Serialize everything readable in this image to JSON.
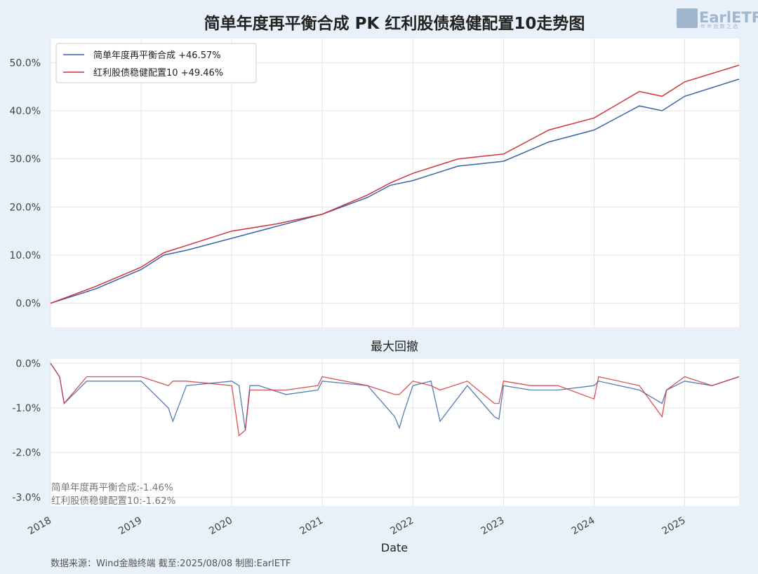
{
  "title": "简单年度再平衡合成 PK 红利股债稳健配置10走势图",
  "logo": {
    "text": "EarlETF",
    "subtext": "年 年 指 数 之 选"
  },
  "footer": "数据来源：Wind金融终端 截至:2025/08/08 制图:EarlETF",
  "colors": {
    "series1": "#3a64a8",
    "series2": "#d0343c",
    "grid": "#e4e4e4",
    "background": "#e8f1fa"
  },
  "chart_data": [
    {
      "type": "line",
      "title": "简单年度再平衡合成 PK 红利股债稳健配置10走势图",
      "xlabel": "",
      "ylabel": "",
      "ylim": [
        -5,
        55
      ],
      "yticks": [
        "0.0%",
        "10.0%",
        "20.0%",
        "30.0%",
        "40.0%",
        "50.0%"
      ],
      "ytick_values": [
        0,
        10,
        20,
        30,
        40,
        50
      ],
      "x": [
        2018.0,
        2018.5,
        2019.0,
        2019.25,
        2019.5,
        2020.0,
        2020.5,
        2021.0,
        2021.5,
        2021.75,
        2022.0,
        2022.5,
        2023.0,
        2023.5,
        2024.0,
        2024.5,
        2024.75,
        2025.0,
        2025.6
      ],
      "series": [
        {
          "name": "简单年度再平衡合成",
          "label": "简单年度再平衡合成  +46.57%",
          "values": [
            0,
            3,
            7,
            10,
            11,
            13.5,
            16,
            18.5,
            22,
            24.5,
            25.5,
            28.5,
            29.5,
            33.5,
            36,
            41,
            40,
            43,
            46.57
          ]
        },
        {
          "name": "红利股债稳健配置10",
          "label": "红利股债稳健配置10  +49.46%",
          "values": [
            0,
            3.5,
            7.5,
            10.5,
            12,
            15,
            16.5,
            18.5,
            22.5,
            25,
            27,
            30,
            31,
            36,
            38.5,
            44,
            43,
            46,
            49.46
          ]
        }
      ],
      "legend": "top-left",
      "grid": true
    },
    {
      "type": "area",
      "title": "最大回撤",
      "xlabel": "Date",
      "ylim": [
        -3.2,
        0.1
      ],
      "yticks": [
        "0.0%",
        "-1.0%",
        "-2.0%",
        "-3.0%"
      ],
      "ytick_values": [
        0,
        -1,
        -2,
        -3
      ],
      "xticks": [
        "2018",
        "2019",
        "2020",
        "2021",
        "2022",
        "2023",
        "2024",
        "2025"
      ],
      "x": [
        2018.0,
        2018.1,
        2018.15,
        2018.4,
        2019.0,
        2019.3,
        2019.35,
        2019.5,
        2020.0,
        2020.08,
        2020.15,
        2020.2,
        2020.3,
        2020.6,
        2020.95,
        2021.0,
        2021.5,
        2021.8,
        2021.85,
        2021.9,
        2022.0,
        2022.2,
        2022.3,
        2022.6,
        2022.9,
        2022.95,
        2023.0,
        2023.3,
        2023.6,
        2024.0,
        2024.05,
        2024.5,
        2024.75,
        2024.8,
        2025.0,
        2025.3,
        2025.6
      ],
      "series": [
        {
          "name": "简单年度再平衡合成",
          "values": [
            0,
            -0.3,
            -0.9,
            -0.4,
            -0.4,
            -1.0,
            -1.3,
            -0.5,
            -0.4,
            -0.5,
            -1.5,
            -0.5,
            -0.5,
            -0.7,
            -0.6,
            -0.4,
            -0.5,
            -1.2,
            -1.45,
            -1.1,
            -0.5,
            -0.4,
            -1.3,
            -0.5,
            -1.2,
            -1.25,
            -0.5,
            -0.6,
            -0.6,
            -0.5,
            -0.4,
            -0.6,
            -0.9,
            -0.6,
            -0.4,
            -0.5,
            -0.3
          ]
        },
        {
          "name": "红利股债稳健配置10",
          "values": [
            0,
            -0.3,
            -0.9,
            -0.3,
            -0.3,
            -0.5,
            -0.4,
            -0.4,
            -0.5,
            -1.62,
            -1.5,
            -0.6,
            -0.6,
            -0.6,
            -0.5,
            -0.3,
            -0.5,
            -0.7,
            -0.7,
            -0.6,
            -0.4,
            -0.5,
            -0.6,
            -0.4,
            -0.9,
            -0.9,
            -0.4,
            -0.5,
            -0.5,
            -0.8,
            -0.3,
            -0.5,
            -1.2,
            -0.6,
            -0.3,
            -0.5,
            -0.3
          ]
        }
      ],
      "annotations": [
        "简单年度再平衡合成:-1.46%",
        "红利股债稳健配置10:-1.62%"
      ],
      "grid": true
    }
  ]
}
